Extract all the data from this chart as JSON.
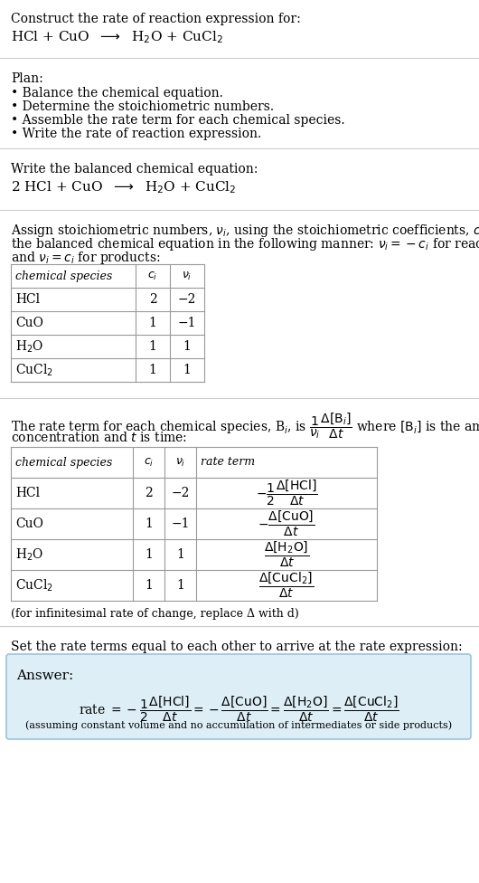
{
  "title_text": "Construct the rate of reaction expression for:",
  "plan_title": "Plan:",
  "plan_items": [
    "• Balance the chemical equation.",
    "• Determine the stoichiometric numbers.",
    "• Assemble the rate term for each chemical species.",
    "• Write the rate of reaction expression."
  ],
  "balanced_label": "Write the balanced chemical equation:",
  "assign_text_line1": "Assign stoichiometric numbers, ν_i, using the stoichiometric coefficients, c_i, from",
  "assign_text_line2": "the balanced chemical equation in the following manner: ν_i = −c_i for reactants",
  "assign_text_line3": "and ν_i = c_i for products:",
  "table1_headers": [
    "chemical species",
    "c_i",
    "ν_i"
  ],
  "table1_rows": [
    [
      "HCl",
      "2",
      "−2"
    ],
    [
      "CuO",
      "1",
      "−1"
    ],
    [
      "H2O",
      "1",
      "1"
    ],
    [
      "CuCl2",
      "1",
      "1"
    ]
  ],
  "rate_desc_line1": "The rate term for each chemical species, B_i, is (1/ν_i)(Δ[B_i]/Δt) where [B_i] is the amount",
  "rate_desc_line2": "concentration and t is time:",
  "table2_headers": [
    "chemical species",
    "c_i",
    "ν_i",
    "rate term"
  ],
  "table2_rows": [
    [
      "HCl",
      "2",
      "−2",
      "-1/2 d[HCl]/dt"
    ],
    [
      "CuO",
      "1",
      "−1",
      "-d[CuO]/dt"
    ],
    [
      "H2O",
      "1",
      "1",
      "d[H2O]/dt"
    ],
    [
      "CuCl2",
      "1",
      "1",
      "d[CuCl2]/dt"
    ]
  ],
  "infinitesimal_note": "(for infinitesimal rate of change, replace Δ with d)",
  "set_equal_text": "Set the rate terms equal to each other to arrive at the rate expression:",
  "answer_label": "Answer:",
  "answer_bg_color": "#ddeef6",
  "answer_border_color": "#99c4dd",
  "bg_color": "#ffffff",
  "text_color": "#000000",
  "separator_color": "#cccccc",
  "table_line_color": "#999999",
  "font_size": 10,
  "small_font_size": 9
}
